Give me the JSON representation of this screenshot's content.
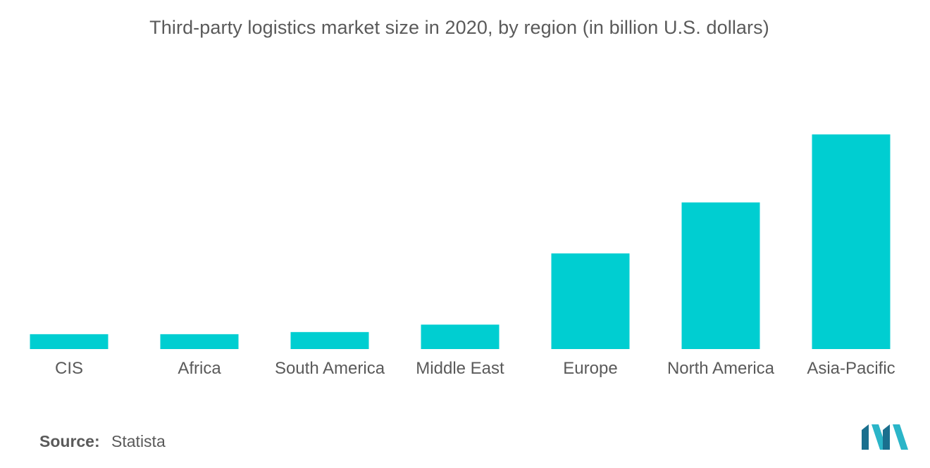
{
  "chart_data": {
    "type": "bar",
    "title": "Third-party logistics market size in 2020, by region (in billion U.S. dollars)",
    "categories": [
      "CIS",
      "Africa",
      "South America",
      "Middle East",
      "Europe",
      "North America",
      "Asia-Pacific"
    ],
    "values": [
      7,
      7,
      8,
      11.5,
      45,
      69,
      101
    ],
    "xlabel": "",
    "ylabel": "",
    "ylim": [
      0,
      101
    ],
    "grid": false,
    "legend": "none",
    "bar_color": "#00CED1"
  },
  "source": {
    "label": "Source:",
    "value": "Statista"
  },
  "logo": {
    "icon": "mordor-intelligence-logo",
    "color_dark": "#1a6f8e",
    "color_light": "#2bb5c8"
  }
}
